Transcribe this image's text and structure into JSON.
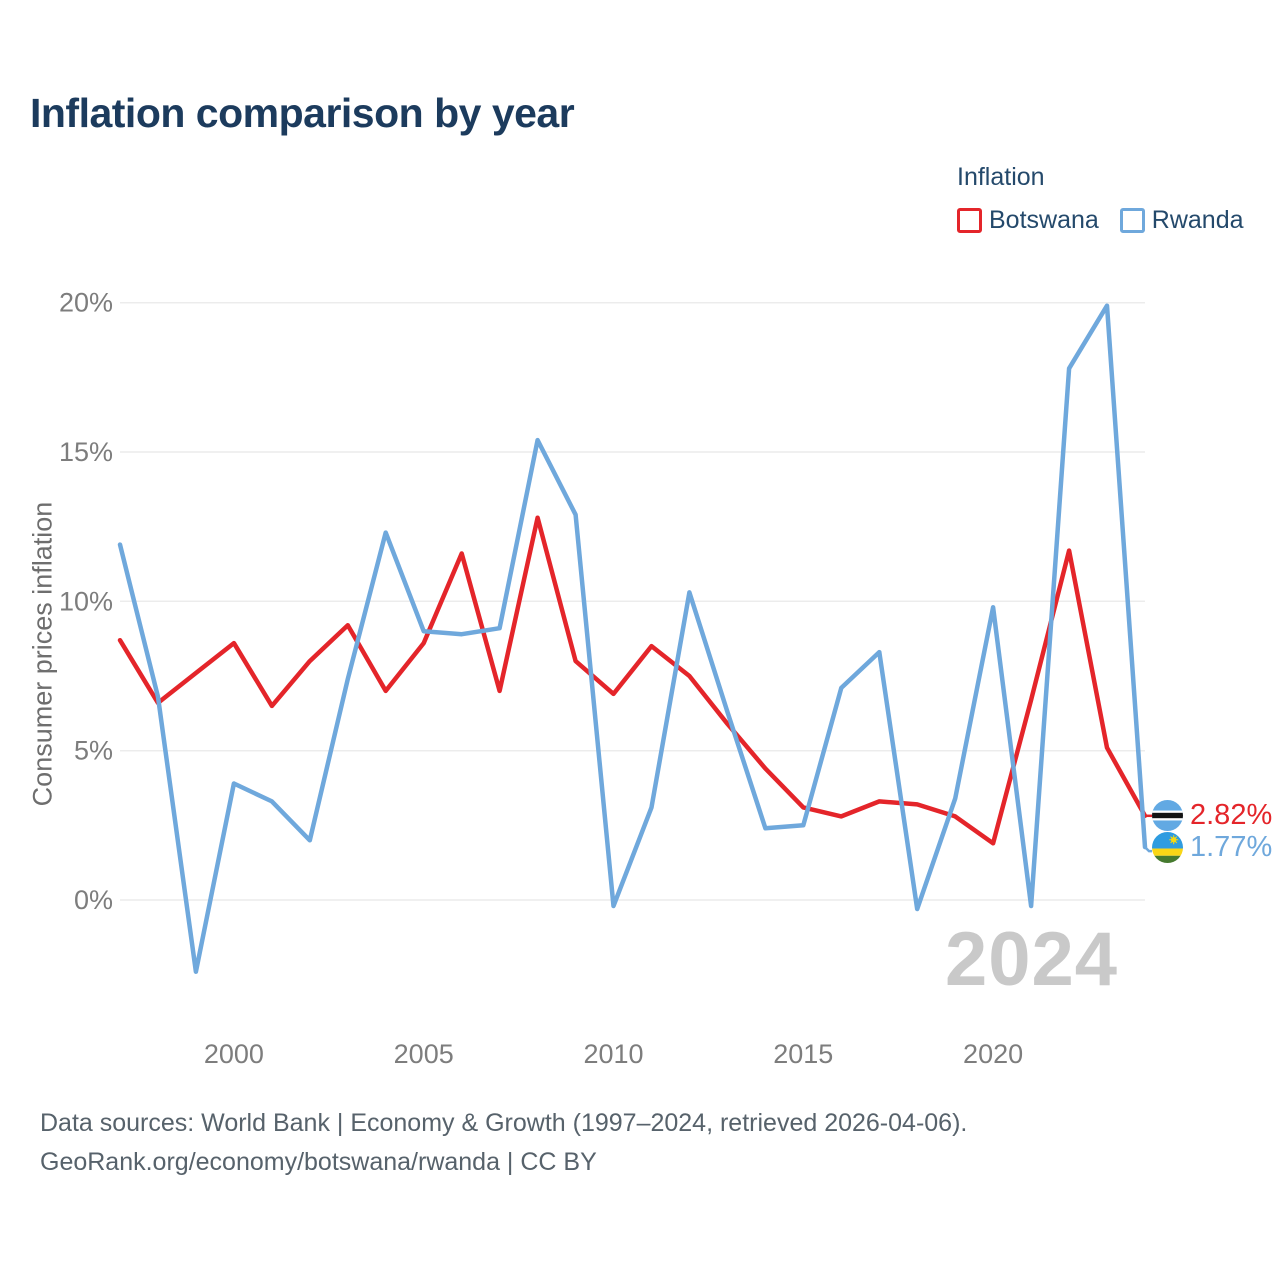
{
  "title": "Inflation comparison by year",
  "legend": {
    "title": "Inflation",
    "items": [
      {
        "label": "Botswana",
        "color": "#e4252a"
      },
      {
        "label": "Rwanda",
        "color": "#6fa8dc"
      }
    ]
  },
  "y_axis": {
    "title": "Consumer prices inflation",
    "tick_values": [
      0,
      5,
      10,
      15,
      20
    ],
    "tick_labels": [
      "0%",
      "5%",
      "10%",
      "15%",
      "20%"
    ]
  },
  "x_axis": {
    "tick_labels": [
      "2000",
      "2005",
      "2010",
      "2015",
      "2020"
    ],
    "tick_values": [
      2000,
      2005,
      2010,
      2015,
      2020
    ]
  },
  "watermark": "2024",
  "end_labels": [
    {
      "series": "Botswana",
      "value": "2.82%",
      "color": "#e4252a",
      "flag": "botswana-flag-icon"
    },
    {
      "series": "Rwanda",
      "value": "1.77%",
      "color": "#6fa8dc",
      "flag": "rwanda-flag-icon"
    }
  ],
  "footer": {
    "line1": "Data sources: World Bank | Economy & Growth (1997–2024, retrieved 2026-04-06).",
    "line2": "GeoRank.org/economy/botswana/rwanda | CC BY"
  },
  "chart_data": {
    "type": "line",
    "title": "Inflation comparison by year",
    "ylabel": "Consumer prices inflation",
    "xlabel": "",
    "ylim": [
      -3,
      21
    ],
    "grid": "horizontal",
    "legend_position": "top-right",
    "x": [
      1997,
      1998,
      1999,
      2000,
      2001,
      2002,
      2003,
      2004,
      2005,
      2006,
      2007,
      2008,
      2009,
      2010,
      2011,
      2012,
      2013,
      2014,
      2015,
      2016,
      2017,
      2018,
      2019,
      2020,
      2021,
      2022,
      2023,
      2024
    ],
    "series": [
      {
        "name": "Botswana",
        "color": "#e4252a",
        "values": [
          8.7,
          6.6,
          7.6,
          8.6,
          6.5,
          8.0,
          9.2,
          7.0,
          8.6,
          11.6,
          7.0,
          12.8,
          8.0,
          6.9,
          8.5,
          7.5,
          5.9,
          4.4,
          3.1,
          2.8,
          3.3,
          3.2,
          2.8,
          1.9,
          6.7,
          11.7,
          5.1,
          2.82
        ]
      },
      {
        "name": "Rwanda",
        "color": "#6fa8dc",
        "values": [
          11.9,
          6.8,
          -2.4,
          3.9,
          3.3,
          2.0,
          7.4,
          12.3,
          9.0,
          8.9,
          9.1,
          15.4,
          12.9,
          -0.2,
          3.1,
          10.3,
          6.3,
          2.4,
          2.5,
          7.1,
          8.3,
          -0.3,
          3.4,
          9.8,
          -0.2,
          17.8,
          19.9,
          1.77
        ]
      }
    ]
  }
}
